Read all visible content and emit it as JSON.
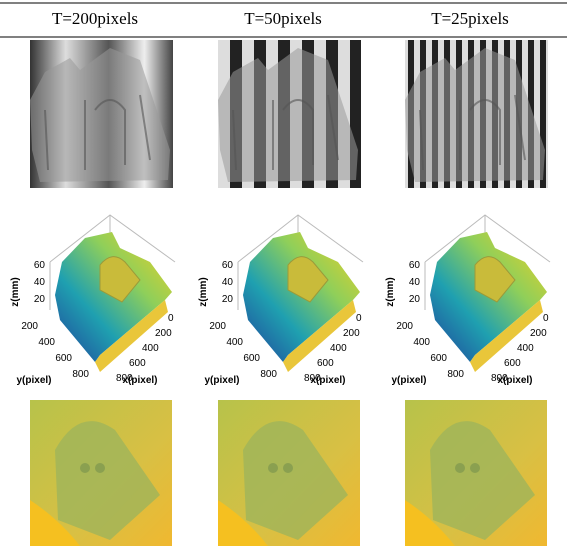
{
  "header": [
    "T=200pixels",
    "T=50pixels",
    "T=25pixels"
  ],
  "plot": {
    "zlabel": "z(mm)",
    "ylabel": "y(pixel)",
    "xlabel": "x(pixel)",
    "zticks": [
      20,
      40,
      60
    ],
    "yticks": [
      200,
      400,
      600,
      800
    ],
    "xticks": [
      0,
      200,
      400,
      600,
      800
    ]
  }
}
